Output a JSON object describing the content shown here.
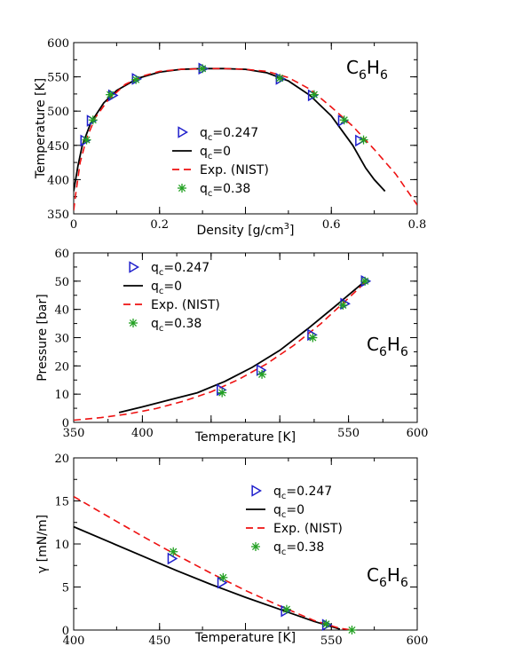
{
  "molecule": {
    "base": "C",
    "sub1": "6",
    "mid": "H",
    "sub2": "6"
  },
  "legend": [
    {
      "key": "tri",
      "base": "q",
      "sub": "c",
      "value": "=0.247",
      "color": "#1f1fcc"
    },
    {
      "key": "solid",
      "base": "q",
      "sub": "c",
      "value": "=0",
      "color": "#000000"
    },
    {
      "key": "dashed",
      "text": "Exp. (NIST)",
      "color": "#ee1111"
    },
    {
      "key": "star",
      "base": "q",
      "sub": "c",
      "value": "=0.38",
      "color": "#22a022"
    }
  ],
  "chart_data": [
    {
      "type": "line",
      "xlabel": "Density [g/cm",
      "xlabel_sup": "3",
      "xlabel_end": "]",
      "ylabel": "Temperature [K]",
      "xlim": [
        0,
        0.8
      ],
      "ylim": [
        350,
        600
      ],
      "xticks": [
        0,
        0.2,
        0.4,
        0.6,
        0.8
      ],
      "xtick_labels": [
        "0",
        "0.2",
        "",
        "0.6",
        "0.8"
      ],
      "yticks": [
        350,
        400,
        450,
        500,
        550,
        600
      ],
      "ytick_labels": [
        "350",
        "400",
        "450",
        "500",
        "550",
        "600"
      ],
      "series": [
        {
          "key": "tri",
          "x": [
            0.025,
            0.04,
            0.09,
            0.145,
            0.3,
            0.48,
            0.555,
            0.625,
            0.665
          ],
          "y": [
            457,
            486,
            523,
            547,
            562,
            547,
            523,
            486,
            457
          ]
        },
        {
          "key": "solid",
          "x": [
            0.0,
            0.01,
            0.02,
            0.04,
            0.07,
            0.1,
            0.15,
            0.2,
            0.25,
            0.3,
            0.35,
            0.4,
            0.45,
            0.5,
            0.55,
            0.6,
            0.65,
            0.68,
            0.7,
            0.725
          ],
          "y": [
            383,
            420,
            450,
            483,
            512,
            530,
            548,
            557,
            561,
            562,
            562,
            561,
            556,
            544,
            523,
            493,
            450,
            417,
            400,
            383
          ]
        },
        {
          "key": "dashed",
          "x": [
            0.0,
            0.005,
            0.015,
            0.03,
            0.05,
            0.08,
            0.12,
            0.16,
            0.2,
            0.25,
            0.3,
            0.35,
            0.4,
            0.45,
            0.5,
            0.55,
            0.6,
            0.65,
            0.7,
            0.75,
            0.8
          ],
          "y": [
            355,
            380,
            425,
            460,
            490,
            516,
            539,
            551,
            558,
            561,
            562,
            562,
            561,
            558,
            549,
            532,
            506,
            478,
            444,
            408,
            363
          ]
        },
        {
          "key": "star",
          "x": [
            0.03,
            0.045,
            0.085,
            0.145,
            0.3,
            0.48,
            0.56,
            0.63,
            0.675
          ],
          "y": [
            458,
            487,
            524,
            546,
            562,
            548,
            524,
            487,
            458
          ]
        }
      ]
    },
    {
      "type": "line",
      "xlabel": "Temperature [K]",
      "ylabel": "Pressure [bar]",
      "xlim": [
        350,
        600
      ],
      "ylim": [
        0,
        60
      ],
      "xticks": [
        350,
        400,
        450,
        500,
        550,
        600
      ],
      "xtick_labels": [
        "350",
        "400",
        "",
        "",
        "550",
        "600"
      ],
      "yticks": [
        0,
        10,
        20,
        30,
        40,
        50,
        60
      ],
      "ytick_labels": [
        "0",
        "10",
        "20",
        "30",
        "40",
        "50",
        "60"
      ],
      "series": [
        {
          "key": "tri",
          "x": [
            457,
            486,
            523,
            547,
            562
          ],
          "y": [
            11.5,
            18.5,
            31,
            42,
            50
          ]
        },
        {
          "key": "solid",
          "x": [
            383,
            400,
            420,
            440,
            460,
            480,
            500,
            520,
            540,
            562
          ],
          "y": [
            3.5,
            5.5,
            8,
            10.5,
            14.5,
            19.5,
            25.5,
            33,
            41,
            50
          ]
        },
        {
          "key": "dashed",
          "x": [
            350,
            370,
            390,
            410,
            430,
            450,
            470,
            490,
            510,
            530,
            550,
            562
          ],
          "y": [
            0.8,
            1.7,
            3,
            4.9,
            7.5,
            10.8,
            15.2,
            20.6,
            27.2,
            35,
            44,
            49.5
          ]
        },
        {
          "key": "star",
          "x": [
            458,
            487,
            524,
            546,
            562
          ],
          "y": [
            10.5,
            17,
            30,
            41.5,
            50
          ]
        }
      ]
    },
    {
      "type": "line",
      "xlabel": "Temperature [K]",
      "ylabel": "γ [mN/m]",
      "xlim": [
        400,
        600
      ],
      "ylim": [
        0,
        20
      ],
      "xticks": [
        400,
        450,
        500,
        550,
        600
      ],
      "xtick_labels": [
        "400",
        "450",
        "",
        "550",
        "600"
      ],
      "yticks": [
        0,
        5,
        10,
        15,
        20
      ],
      "ytick_labels": [
        "0",
        "5",
        "10",
        "15",
        "20"
      ],
      "series": [
        {
          "key": "tri",
          "x": [
            457,
            486,
            523,
            547
          ],
          "y": [
            8.3,
            5.5,
            2.2,
            0.6
          ]
        },
        {
          "key": "solid",
          "x": [
            400,
            420,
            440,
            460,
            480,
            500,
            520,
            540,
            555
          ],
          "y": [
            12,
            10.3,
            8.6,
            6.9,
            5.3,
            3.8,
            2.4,
            1.0,
            0.1
          ]
        },
        {
          "key": "dashed",
          "x": [
            400,
            420,
            440,
            460,
            480,
            500,
            520,
            540,
            555,
            562
          ],
          "y": [
            15.5,
            13.2,
            10.9,
            8.7,
            6.6,
            4.6,
            2.8,
            1.1,
            0.2,
            0
          ]
        },
        {
          "key": "star",
          "x": [
            458,
            487,
            524,
            547,
            562
          ],
          "y": [
            9.1,
            6.1,
            2.4,
            0.7,
            0.0
          ]
        }
      ]
    }
  ]
}
